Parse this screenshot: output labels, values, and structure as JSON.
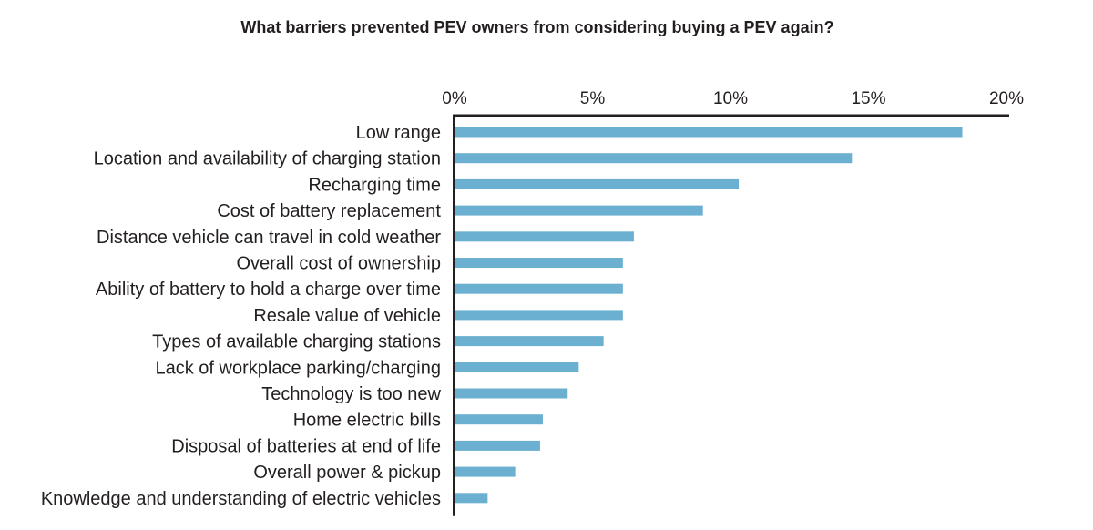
{
  "chart_data": {
    "type": "bar",
    "orientation": "horizontal",
    "title": "What barriers prevented PEV owners from considering buying a PEV again?",
    "xlabel": "",
    "ylabel": "",
    "xlim": [
      0,
      20
    ],
    "x_ticks": [
      "0%",
      "5%",
      "10%",
      "15%",
      "20%"
    ],
    "x_tick_values": [
      0,
      5,
      10,
      15,
      20
    ],
    "axis_position": "top",
    "grid": false,
    "bar_color": "#6bb0d0",
    "categories": [
      "Low range",
      "Location and availability of charging station",
      "Recharging time",
      "Cost of battery replacement",
      "Distance vehicle can travel in cold weather",
      "Overall cost of ownership",
      "Ability of battery to hold a charge over time",
      "Resale value of vehicle",
      "Types of available charging stations",
      "Lack of workplace parking/charging",
      "Technology is too new",
      "Home electric bills",
      "Disposal of batteries at end of life",
      "Overall power & pickup",
      "Knowledge and understanding of electric vehicles"
    ],
    "values": [
      18.4,
      14.4,
      10.3,
      9.0,
      6.5,
      6.1,
      6.1,
      6.1,
      5.4,
      4.5,
      4.1,
      3.2,
      3.1,
      2.2,
      1.2
    ]
  }
}
